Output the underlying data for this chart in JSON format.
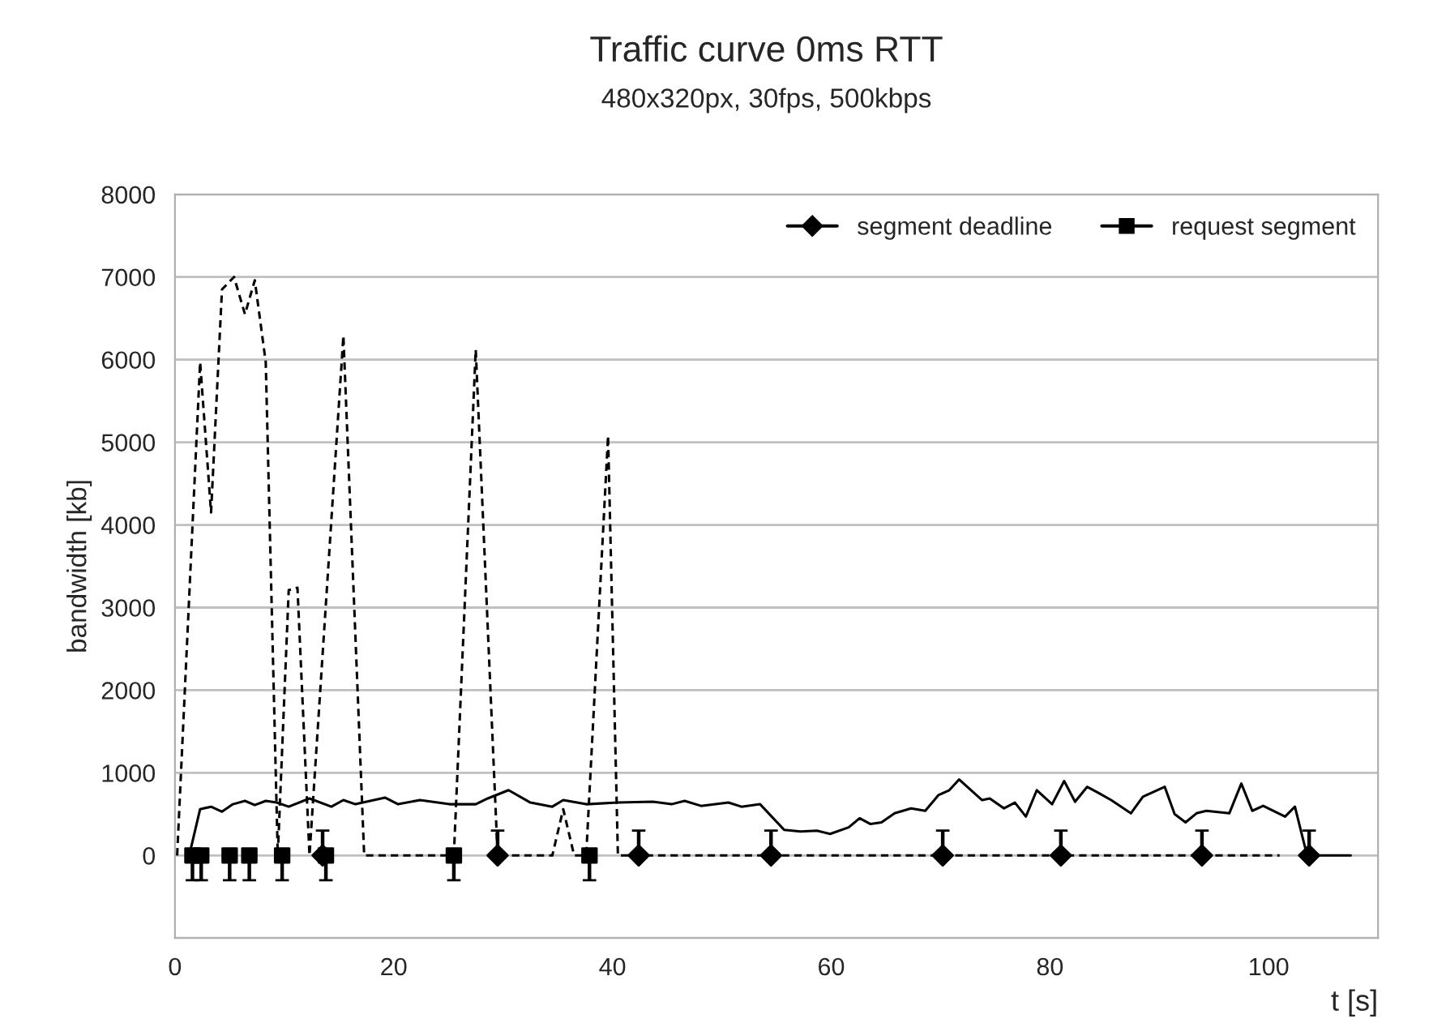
{
  "chart_data": {
    "type": "line",
    "title": "Traffic curve 0ms RTT",
    "subtitle": "480x320px, 30fps, 500kbps",
    "xlabel": "t [s]",
    "ylabel": "bandwidth [kb]",
    "xlim": [
      0,
      110
    ],
    "xticks": [
      0,
      20,
      40,
      60,
      80,
      100
    ],
    "ylim": [
      -1000,
      8000
    ],
    "yticks": [
      {
        "value": -1000,
        "label": null
      },
      0,
      1000,
      2000,
      3000,
      4000,
      5000,
      6000,
      7000,
      8000
    ],
    "grid": "y",
    "legend": "top right",
    "series": [
      {
        "color": "#000000",
        "line_style": "solid",
        "marker": "none",
        "x": [
          1.3,
          2.3,
          3.3,
          4.3,
          5.3,
          6.4,
          7.3,
          8.3,
          9.3,
          10.4,
          12.3,
          14.3,
          15.4,
          16.5,
          19.2,
          20.4,
          22.4,
          25.1,
          27.5,
          28.6,
          30.5,
          32.5,
          34.5,
          35.5,
          37.6,
          40.5,
          43.7,
          45.4,
          46.6,
          48.1,
          50.6,
          51.8,
          53.5,
          55.7,
          57.2,
          58.7,
          59.9,
          61.6,
          62.6,
          63.6,
          64.6,
          65.8,
          67.3,
          68.6,
          69.8,
          70.8,
          71.7,
          73.8,
          74.5,
          75.8,
          76.8,
          77.8,
          78.8,
          80.2,
          81.3,
          82.3,
          83.4,
          84.4,
          85.6,
          87.4,
          88.5,
          90.5,
          91.4,
          92.4,
          93.4,
          94.3,
          96.4,
          97.5,
          98.5,
          99.5,
          101.5,
          102.4,
          103.4,
          104.3,
          107.5
        ],
        "values": [
          0,
          560,
          590,
          530,
          620,
          660,
          610,
          660,
          640,
          590,
          690,
          590,
          670,
          620,
          700,
          620,
          670,
          620,
          620,
          690,
          790,
          640,
          590,
          670,
          620,
          640,
          650,
          620,
          660,
          600,
          640,
          590,
          620,
          310,
          290,
          300,
          260,
          340,
          450,
          380,
          400,
          510,
          570,
          540,
          730,
          790,
          920,
          670,
          690,
          570,
          640,
          470,
          790,
          620,
          900,
          650,
          830,
          760,
          670,
          510,
          710,
          830,
          500,
          400,
          510,
          540,
          510,
          870,
          540,
          600,
          470,
          590,
          60,
          0,
          0
        ]
      },
      {
        "color": "#000000",
        "line_style": "dashed",
        "marker": "none",
        "x": [
          0.2,
          2.3,
          3.3,
          4.3,
          5.4,
          6.4,
          7.3,
          8.3,
          9.4,
          10.4,
          11.2,
          12.3,
          15.4,
          17.3,
          25.5,
          27.5,
          29.5,
          34.5,
          35.5,
          36.5,
          37.6,
          39.6,
          40.5,
          101
        ],
        "values": [
          0,
          5970,
          4150,
          6850,
          7000,
          6550,
          6960,
          5970,
          0,
          3210,
          3240,
          0,
          6290,
          0,
          0,
          6120,
          0,
          0,
          560,
          0,
          0,
          5080,
          0,
          0
        ]
      },
      {
        "type": "scatter",
        "name": "segment deadline",
        "color": "#000000",
        "marker": "diamond",
        "x": [
          13.5,
          29.5,
          42.4,
          54.5,
          70.2,
          81.0,
          93.9,
          103.7
        ],
        "values": [
          0,
          0,
          0,
          0,
          0,
          0,
          0,
          0
        ],
        "errors": [
          [
            0,
            300
          ],
          [
            0,
            300
          ],
          [
            0,
            300
          ],
          [
            0,
            300
          ],
          [
            0,
            300
          ],
          [
            0,
            300
          ],
          [
            0,
            300
          ],
          [
            0,
            300
          ]
        ]
      },
      {
        "type": "scatter",
        "name": "request segment",
        "color": "#000000",
        "marker": "square",
        "x": [
          1.6,
          2.4,
          5.0,
          6.8,
          9.8,
          13.8,
          25.5,
          37.9
        ],
        "values": [
          0,
          0,
          0,
          0,
          0,
          0,
          0,
          0
        ],
        "errors": [
          [
            -300,
            0
          ],
          [
            -300,
            0
          ],
          [
            -300,
            0
          ],
          [
            -300,
            0
          ],
          [
            -300,
            0
          ],
          [
            -300,
            0
          ],
          [
            -300,
            0
          ],
          [
            -300,
            0
          ]
        ]
      }
    ]
  }
}
